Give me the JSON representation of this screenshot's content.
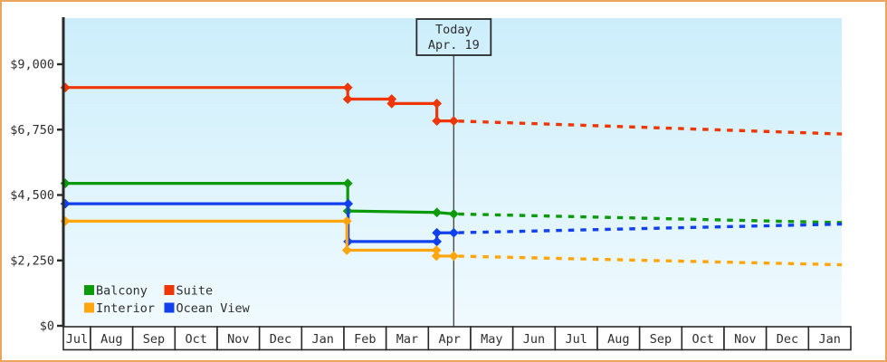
{
  "window": {
    "frame_border_color": "#eba55f",
    "page_background": "#ffffff"
  },
  "chart_data": {
    "type": "line",
    "title": "",
    "description_hint": "Cruise cabin price history with dotted future projection",
    "plot_background_gradient": {
      "top": "#cceefb",
      "bottom": "#f0fafe"
    },
    "axis_color": "#2a2a2a",
    "today_line_color": "#4a4a4a",
    "x_axis": {
      "months": [
        "Jul",
        "Aug",
        "Sep",
        "Oct",
        "Nov",
        "Dec",
        "Jan",
        "Feb",
        "Mar",
        "Apr",
        "May",
        "Jun",
        "Jul",
        "Aug",
        "Sep",
        "Oct",
        "Nov",
        "Dec",
        "Jan"
      ],
      "cell_fill": "#ffffff"
    },
    "y_axis": {
      "tick_labels": [
        "$0",
        "$2,250",
        "$4,500",
        "$6,750",
        "$9,000"
      ],
      "tick_values": [
        0,
        2250,
        4500,
        6750,
        9000
      ],
      "ylim": [
        0,
        10580
      ]
    },
    "today_marker": {
      "label_line1": "Today",
      "label_line2": "Apr. 19",
      "slot": 9,
      "frac": 0.6
    },
    "legend": [
      {
        "label": "Balcony",
        "color": "#0a9a0a"
      },
      {
        "label": "Suite",
        "color": "#ee3606"
      },
      {
        "label": "Interior",
        "color": "#ffa50d"
      },
      {
        "label": "Ocean View",
        "color": "#1140ee"
      }
    ],
    "series": [
      {
        "name": "Suite",
        "color": "#ee3606",
        "solid_points": [
          {
            "slot": 0,
            "frac": 0.07,
            "value": 8200
          },
          {
            "slot": 7,
            "frac": 0.09,
            "value": 8200
          },
          {
            "slot": 7,
            "frac": 0.09,
            "value": 7800
          },
          {
            "slot": 8,
            "frac": 0.13,
            "value": 7800
          },
          {
            "slot": 8,
            "frac": 0.13,
            "value": 7650
          },
          {
            "slot": 9,
            "frac": 0.2,
            "value": 7650
          },
          {
            "slot": 9,
            "frac": 0.2,
            "value": 7050
          },
          {
            "slot": 9,
            "frac": 0.6,
            "value": 7050
          }
        ],
        "projected_end": {
          "slot": 18,
          "frac": 0.79,
          "value": 6600
        }
      },
      {
        "name": "Balcony",
        "color": "#0a9a0a",
        "solid_points": [
          {
            "slot": 0,
            "frac": 0.07,
            "value": 4900
          },
          {
            "slot": 7,
            "frac": 0.09,
            "value": 4900
          },
          {
            "slot": 7,
            "frac": 0.09,
            "value": 3950
          },
          {
            "slot": 9,
            "frac": 0.2,
            "value": 3900
          },
          {
            "slot": 9,
            "frac": 0.6,
            "value": 3850
          }
        ],
        "projected_end": {
          "slot": 18,
          "frac": 0.79,
          "value": 3550
        }
      },
      {
        "name": "Ocean View",
        "color": "#1140ee",
        "solid_points": [
          {
            "slot": 0,
            "frac": 0.07,
            "value": 4200
          },
          {
            "slot": 7,
            "frac": 0.1,
            "value": 4200
          },
          {
            "slot": 7,
            "frac": 0.1,
            "value": 2900
          },
          {
            "slot": 9,
            "frac": 0.2,
            "value": 2900
          },
          {
            "slot": 9,
            "frac": 0.2,
            "value": 3200
          },
          {
            "slot": 9,
            "frac": 0.6,
            "value": 3200
          }
        ],
        "projected_end": {
          "slot": 18,
          "frac": 0.79,
          "value": 3500
        }
      },
      {
        "name": "Interior",
        "color": "#ffa50d",
        "solid_points": [
          {
            "slot": 0,
            "frac": 0.07,
            "value": 3600
          },
          {
            "slot": 7,
            "frac": 0.07,
            "value": 3600
          },
          {
            "slot": 7,
            "frac": 0.07,
            "value": 2600
          },
          {
            "slot": 9,
            "frac": 0.19,
            "value": 2600
          },
          {
            "slot": 9,
            "frac": 0.19,
            "value": 2400
          },
          {
            "slot": 9,
            "frac": 0.6,
            "value": 2400
          }
        ],
        "projected_end": {
          "slot": 18,
          "frac": 0.79,
          "value": 2100
        }
      }
    ],
    "legend_position": "bottom-left-inside-plot",
    "grid": false
  }
}
